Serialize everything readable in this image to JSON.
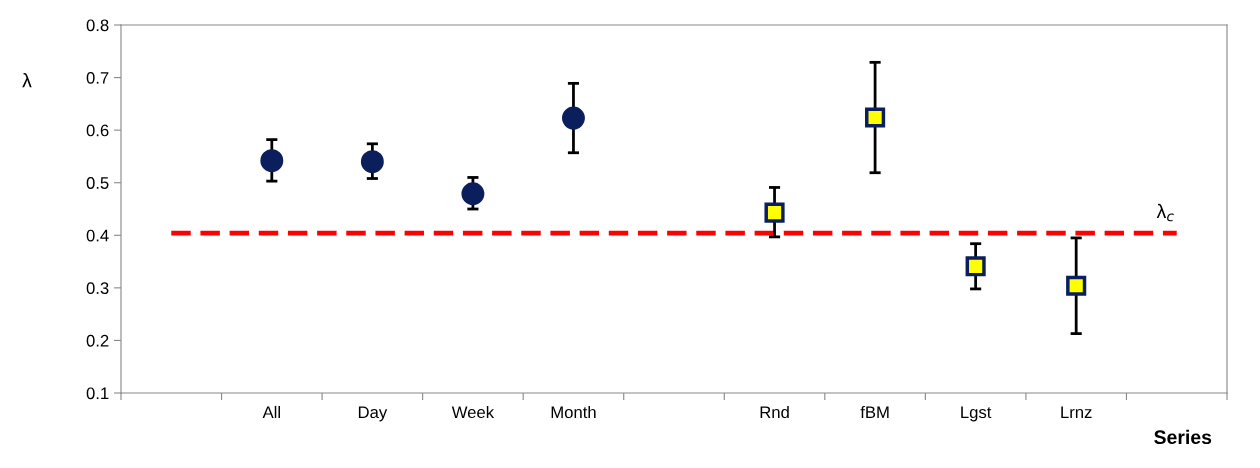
{
  "chart_data": {
    "type": "scatter",
    "xlabel": "Series",
    "ylabel": "λ",
    "categories": [
      null,
      "All",
      "Day",
      "Week",
      "Month",
      null,
      "Rnd",
      "fBM",
      "Lgst",
      "Lrnz",
      null
    ],
    "series": [
      {
        "color": "#0b1f5c",
        "marker": "circle",
        "values": [
          null,
          0.542,
          0.54,
          0.479,
          0.623,
          null,
          null,
          null,
          null,
          null,
          null
        ],
        "errors": [
          null,
          [
            0.503,
            0.582
          ],
          [
            0.508,
            0.574
          ],
          [
            0.45,
            0.51
          ],
          [
            0.557,
            0.689
          ],
          null,
          null,
          null,
          null,
          null,
          null
        ]
      },
      {
        "color": "#ffff00",
        "marker": "square",
        "values": [
          null,
          null,
          null,
          null,
          null,
          null,
          0.443,
          0.624,
          0.341,
          0.304,
          null
        ],
        "errors": [
          null,
          null,
          null,
          null,
          null,
          null,
          [
            0.397,
            0.491
          ],
          [
            0.519,
            0.729
          ],
          [
            0.298,
            0.384
          ],
          [
            0.213,
            0.395
          ],
          null
        ]
      },
      {
        "type": "line",
        "color": "#ff0000",
        "line_style": "dashed",
        "marker": "none",
        "values": [
          0.404,
          0.404,
          0.404,
          0.404,
          0.404,
          0.404,
          0.404,
          0.404,
          0.404,
          0.404,
          0.404
        ]
      }
    ],
    "annotations": [
      "λ$_{c}$"
    ],
    "ylim": [
      0.1,
      0.8
    ],
    "yticks": [
      0.1,
      0.2,
      0.3,
      0.4,
      0.5,
      0.6,
      0.7,
      0.8
    ],
    "grid": false,
    "legend": false
  }
}
